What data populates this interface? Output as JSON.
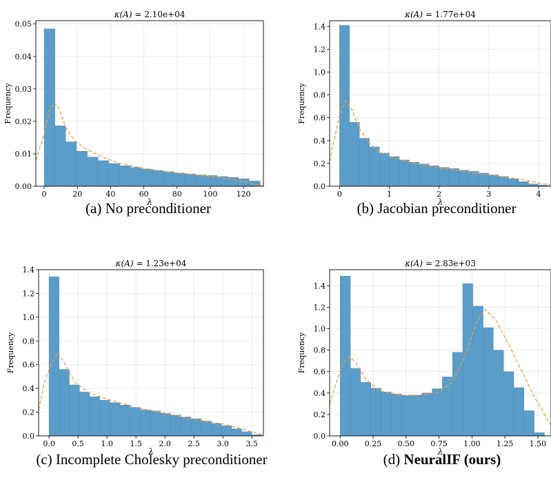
{
  "chart_data": [
    {
      "type": "bar",
      "title_prefix": "κ(A) = ",
      "title_value": "2.10e+04",
      "xlabel": "λ",
      "ylabel": "Frequency",
      "bin_width": 6.5,
      "x_start": 0.0,
      "xlim": [
        -5,
        132
      ],
      "ylim": [
        0,
        0.051
      ],
      "xticks": [
        0,
        20,
        40,
        60,
        80,
        100,
        120
      ],
      "xtick_labels": [
        "0",
        "20",
        "40",
        "60",
        "80",
        "100",
        "120"
      ],
      "yticks": [
        0,
        0.01,
        0.02,
        0.03,
        0.04,
        0.05
      ],
      "ytick_labels": [
        "0.00",
        "0.01",
        "0.02",
        "0.03",
        "0.04",
        "0.05"
      ],
      "values": [
        0.0485,
        0.0186,
        0.0137,
        0.0108,
        0.009,
        0.0079,
        0.007,
        0.0063,
        0.0058,
        0.0053,
        0.0049,
        0.0045,
        0.0041,
        0.0038,
        0.0035,
        0.0033,
        0.003,
        0.0027,
        0.0023,
        0.0016
      ],
      "kde": [
        [
          -5,
          0.008
        ],
        [
          0,
          0.016
        ],
        [
          3,
          0.023
        ],
        [
          6,
          0.0258
        ],
        [
          9,
          0.024
        ],
        [
          13,
          0.018
        ],
        [
          18,
          0.0143
        ],
        [
          25,
          0.0115
        ],
        [
          35,
          0.009
        ],
        [
          45,
          0.0071
        ],
        [
          60,
          0.0055
        ],
        [
          75,
          0.0044
        ],
        [
          90,
          0.0036
        ],
        [
          105,
          0.0027
        ],
        [
          115,
          0.002
        ],
        [
          122,
          0.0012
        ],
        [
          128,
          0.0004
        ],
        [
          132,
          0.0001
        ]
      ],
      "caption_label": "(a) No preconditioner",
      "caption_bold": ""
    },
    {
      "type": "bar",
      "title_prefix": "κ(A) = ",
      "title_value": "1.77e+04",
      "xlabel": "λ",
      "ylabel": "Frequency",
      "bin_width": 0.2,
      "x_start": 0.0,
      "xlim": [
        -0.2,
        4.25
      ],
      "ylim": [
        0,
        1.45
      ],
      "xticks": [
        0,
        1,
        2,
        3,
        4
      ],
      "xtick_labels": [
        "0",
        "1",
        "2",
        "3",
        "4"
      ],
      "yticks": [
        0,
        0.2,
        0.4,
        0.6,
        0.8,
        1.0,
        1.2,
        1.4
      ],
      "ytick_labels": [
        "0.0",
        "0.2",
        "0.4",
        "0.6",
        "0.8",
        "1.0",
        "1.2",
        "1.4"
      ],
      "values": [
        1.41,
        0.56,
        0.42,
        0.345,
        0.29,
        0.26,
        0.23,
        0.21,
        0.195,
        0.18,
        0.165,
        0.155,
        0.14,
        0.13,
        0.115,
        0.1,
        0.085,
        0.065,
        0.04,
        0.02,
        0.01
      ],
      "kde": [
        [
          -0.2,
          0.22
        ],
        [
          -0.1,
          0.42
        ],
        [
          0.0,
          0.62
        ],
        [
          0.12,
          0.75
        ],
        [
          0.25,
          0.67
        ],
        [
          0.4,
          0.5
        ],
        [
          0.6,
          0.38
        ],
        [
          0.8,
          0.3
        ],
        [
          1.0,
          0.265
        ],
        [
          1.5,
          0.2
        ],
        [
          2.0,
          0.16
        ],
        [
          2.5,
          0.13
        ],
        [
          3.0,
          0.1
        ],
        [
          3.5,
          0.07
        ],
        [
          3.8,
          0.05
        ],
        [
          4.0,
          0.03
        ],
        [
          4.25,
          0.01
        ]
      ],
      "caption_label": "(b) Jacobian preconditioner",
      "caption_bold": ""
    },
    {
      "type": "bar",
      "title_prefix": "κ(A) = ",
      "title_value": "1.23e+04",
      "xlabel": "λ",
      "ylabel": "Frequency",
      "bin_width": 0.175,
      "x_start": 0.0,
      "xlim": [
        -0.18,
        3.7
      ],
      "ylim": [
        0,
        1.4
      ],
      "xticks": [
        0,
        0.5,
        1.0,
        1.5,
        2.0,
        2.5,
        3.0,
        3.5
      ],
      "xtick_labels": [
        "0.0",
        "0.5",
        "1.0",
        "1.5",
        "2.0",
        "2.5",
        "3.0",
        "3.5"
      ],
      "yticks": [
        0,
        0.2,
        0.4,
        0.6,
        0.8,
        1.0,
        1.2,
        1.4
      ],
      "ytick_labels": [
        "0.0",
        "0.2",
        "0.4",
        "0.6",
        "0.8",
        "1.0",
        "1.2",
        "1.4"
      ],
      "values": [
        1.34,
        0.56,
        0.43,
        0.37,
        0.33,
        0.3,
        0.28,
        0.26,
        0.24,
        0.22,
        0.21,
        0.19,
        0.175,
        0.16,
        0.145,
        0.125,
        0.105,
        0.085,
        0.06,
        0.035,
        0.01
      ],
      "kde": [
        [
          -0.18,
          0.22
        ],
        [
          -0.08,
          0.45
        ],
        [
          0.05,
          0.62
        ],
        [
          0.15,
          0.7
        ],
        [
          0.28,
          0.6
        ],
        [
          0.45,
          0.45
        ],
        [
          0.7,
          0.36
        ],
        [
          1.0,
          0.31
        ],
        [
          1.5,
          0.24
        ],
        [
          2.0,
          0.19
        ],
        [
          2.5,
          0.14
        ],
        [
          3.0,
          0.1
        ],
        [
          3.4,
          0.05
        ],
        [
          3.6,
          0.02
        ],
        [
          3.7,
          0.01
        ]
      ],
      "caption_label": "(c) Incomplete Cholesky preconditioner",
      "caption_bold": ""
    },
    {
      "type": "bar",
      "title_prefix": "κ(A) = ",
      "title_value": "2.83e+03",
      "xlabel": "λ",
      "ylabel": "Frequency",
      "bin_width": 0.0775,
      "x_start": 0.0,
      "xlim": [
        -0.08,
        1.6
      ],
      "ylim": [
        0,
        1.55
      ],
      "xticks": [
        0,
        0.25,
        0.5,
        0.75,
        1.0,
        1.25,
        1.5
      ],
      "xtick_labels": [
        "0.00",
        "0.25",
        "0.50",
        "0.75",
        "1.00",
        "1.25",
        "1.50"
      ],
      "yticks": [
        0,
        0.2,
        0.4,
        0.6,
        0.8,
        1.0,
        1.2,
        1.4
      ],
      "ytick_labels": [
        "0.0",
        "0.2",
        "0.4",
        "0.6",
        "0.8",
        "1.0",
        "1.2",
        "1.4"
      ],
      "values": [
        1.49,
        0.63,
        0.5,
        0.445,
        0.41,
        0.39,
        0.375,
        0.38,
        0.4,
        0.44,
        0.55,
        0.78,
        1.42,
        1.21,
        1.01,
        0.8,
        0.6,
        0.45,
        0.235,
        0.03
      ],
      "kde": [
        [
          -0.08,
          0.3
        ],
        [
          -0.03,
          0.5
        ],
        [
          0.02,
          0.68
        ],
        [
          0.07,
          0.74
        ],
        [
          0.12,
          0.68
        ],
        [
          0.2,
          0.52
        ],
        [
          0.3,
          0.42
        ],
        [
          0.45,
          0.38
        ],
        [
          0.6,
          0.38
        ],
        [
          0.75,
          0.41
        ],
        [
          0.85,
          0.5
        ],
        [
          0.95,
          0.75
        ],
        [
          1.03,
          1.05
        ],
        [
          1.1,
          1.18
        ],
        [
          1.18,
          1.08
        ],
        [
          1.28,
          0.85
        ],
        [
          1.38,
          0.6
        ],
        [
          1.48,
          0.35
        ],
        [
          1.56,
          0.18
        ],
        [
          1.6,
          0.1
        ]
      ],
      "caption_label": "(d) ",
      "caption_bold": "NeuralIF (ours)"
    }
  ],
  "colors": {
    "bar": "#5b9dc9",
    "bar_edge": "#4a8ab8",
    "kde": "#f39b42",
    "grid": "#e6e6e6",
    "axis": "#000000"
  }
}
